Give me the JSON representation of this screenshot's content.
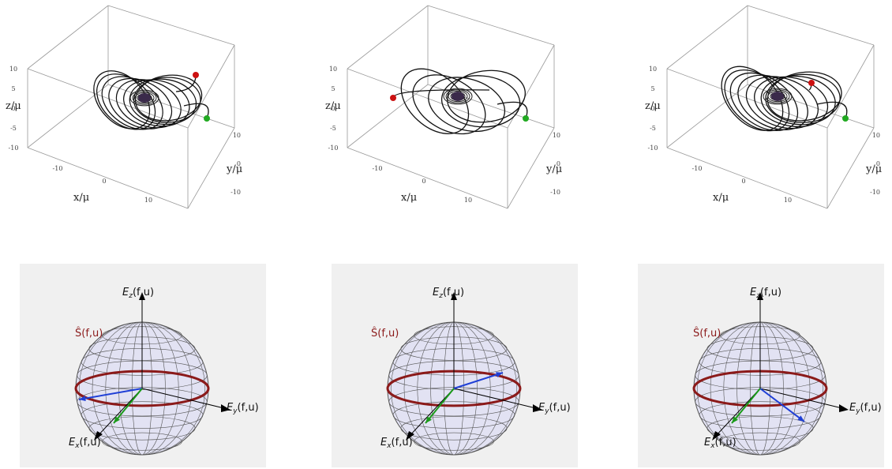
{
  "colors": {
    "orbit": "#111111",
    "box": "#999999",
    "start_marker": "#cc1111",
    "end_marker": "#22aa22",
    "black_hole": "#3a2a4a",
    "sphere_fill": "#dcdcf4",
    "sphere_grid": "#555555",
    "equator": "#8b1a1a",
    "vector_blue": "#1f3fd6",
    "vector_green": "#1a9a1a",
    "axis": "#000000"
  },
  "orbit_plots": [
    {
      "labels": {
        "z": "z/μ",
        "y": "y/μ",
        "x": "x/μ"
      },
      "z_ticks": [
        "10",
        "5",
        "0",
        "-5",
        "-10"
      ],
      "y_ticks": [
        "10",
        "0",
        "-10"
      ],
      "x_ticks": [
        "-10",
        "0",
        "10"
      ],
      "orbit_shape": "petal-low-inclination"
    },
    {
      "labels": {
        "z": "z/μ",
        "y": "y/μ",
        "x": "x/μ"
      },
      "z_ticks": [
        "10",
        "5",
        "0",
        "-5",
        "-10"
      ],
      "y_ticks": [
        "10",
        "0",
        "-10"
      ],
      "x_ticks": [
        "-10",
        "0",
        "10"
      ],
      "orbit_shape": "five-petal-rosette"
    },
    {
      "labels": {
        "z": "z/μ",
        "y": "y/μ",
        "x": "x/μ"
      },
      "z_ticks": [
        "10",
        "5",
        "0",
        "-5",
        "-10"
      ],
      "y_ticks": [
        "10",
        "0",
        "-10"
      ],
      "x_ticks": [
        "-10",
        "0",
        "10"
      ],
      "orbit_shape": "petal-medium"
    }
  ],
  "spheres": [
    {
      "s_label": "Ŝ(f,u)",
      "ez_label": "E",
      "ez_sub": "z",
      "ez_args": "(f,u)",
      "ey_label": "E",
      "ey_sub": "y",
      "ey_args": "(f,u)",
      "ex_label": "E",
      "ex_sub": "x",
      "ex_args": "(f,u)",
      "blue_vector": "pointing-left",
      "green_vector": "pointing-front-left"
    },
    {
      "s_label": "Ŝ(f,u)",
      "ez_label": "E",
      "ez_sub": "z",
      "ez_args": "(f,u)",
      "ey_label": "E",
      "ey_sub": "y",
      "ey_args": "(f,u)",
      "ex_label": "E",
      "ex_sub": "x",
      "ex_args": "(f,u)",
      "blue_vector": "pointing-upper-right",
      "green_vector": "pointing-front-left"
    },
    {
      "s_label": "Ŝ(f,u)",
      "ez_label": "E",
      "ez_sub": "z",
      "ez_args": "(f,u)",
      "ey_label": "E",
      "ey_sub": "y",
      "ey_args": "(f,u)",
      "ex_label": "E",
      "ex_sub": "x",
      "ex_args": "(f,u)",
      "blue_vector": "pointing-lower-right",
      "green_vector": "pointing-front-left"
    }
  ]
}
